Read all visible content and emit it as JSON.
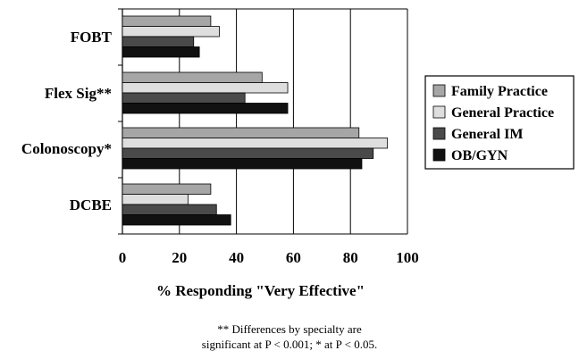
{
  "chart_data": {
    "type": "bar",
    "orientation": "horizontal",
    "categories": [
      "FOBT",
      "Flex Sig**",
      "Colonoscopy*",
      "DCBE"
    ],
    "series": [
      {
        "name": "Family Practice",
        "values": [
          31,
          49,
          83,
          31
        ],
        "color": "#a6a6a6"
      },
      {
        "name": "General Practice",
        "values": [
          34,
          58,
          93,
          23
        ],
        "color": "#dedede"
      },
      {
        "name": "General IM",
        "values": [
          25,
          43,
          88,
          33
        ],
        "color": "#4a4a4a"
      },
      {
        "name": "OB/GYN",
        "values": [
          27,
          58,
          84,
          38
        ],
        "color": "#111111"
      }
    ],
    "xlabel": "% Responding \"Very Effective\"",
    "ylabel": "",
    "xlim": [
      0,
      100
    ],
    "xticks": [
      0,
      20,
      40,
      60,
      80,
      100
    ],
    "grid": "vertical",
    "legend_position": "right"
  },
  "footnote": {
    "line1": "** Differences by specialty are",
    "line2": "significant at P < 0.001; * at P < 0.05."
  }
}
